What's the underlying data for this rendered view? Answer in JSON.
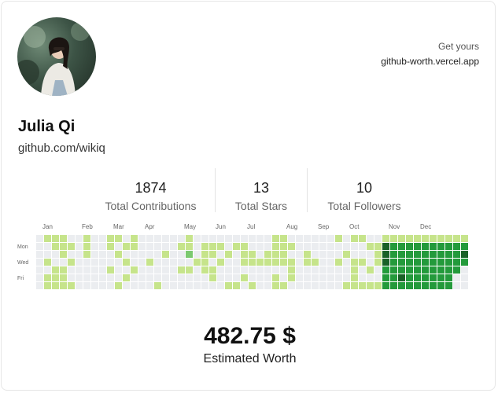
{
  "profile": {
    "name": "Julia Qi",
    "github_url": "github.com/wikiq",
    "avatar_alt": "avatar"
  },
  "promo": {
    "label": "Get yours",
    "link": "github-worth.vercel.app"
  },
  "stats": [
    {
      "value": "1874",
      "label": "Total Contributions"
    },
    {
      "value": "13",
      "label": "Total Stars"
    },
    {
      "value": "10",
      "label": "Total Followers"
    }
  ],
  "graph": {
    "months": [
      {
        "label": "Jan",
        "week": 1
      },
      {
        "label": "Feb",
        "week": 6
      },
      {
        "label": "Mar",
        "week": 10
      },
      {
        "label": "Apr",
        "week": 14
      },
      {
        "label": "May",
        "week": 19
      },
      {
        "label": "Jun",
        "week": 23
      },
      {
        "label": "Jul",
        "week": 27
      },
      {
        "label": "Aug",
        "week": 32
      },
      {
        "label": "Sep",
        "week": 36
      },
      {
        "label": "Oct",
        "week": 40
      },
      {
        "label": "Nov",
        "week": 45
      },
      {
        "label": "Dec",
        "week": 49
      }
    ],
    "day_labels": [
      "Mon",
      "Wed",
      "Fri"
    ],
    "colors": [
      "#ebedf0",
      "#c6e48b",
      "#7bc96f",
      "#239a3b",
      "#196127"
    ],
    "levels": [
      [
        0,
        1,
        1,
        1,
        0,
        0,
        1,
        0,
        0,
        1,
        1,
        0,
        1,
        0,
        0,
        0,
        0,
        0,
        0,
        1,
        0,
        0,
        0,
        0,
        0,
        0,
        0,
        0,
        0,
        0,
        1,
        1,
        0,
        0,
        0,
        0,
        0,
        0,
        1,
        0,
        1,
        1,
        0,
        0,
        1,
        1,
        1,
        1,
        1,
        1,
        1,
        1,
        1,
        1,
        1
      ],
      [
        0,
        0,
        1,
        1,
        1,
        0,
        1,
        0,
        0,
        1,
        0,
        1,
        1,
        0,
        0,
        0,
        0,
        0,
        1,
        1,
        0,
        1,
        1,
        1,
        0,
        1,
        1,
        0,
        0,
        0,
        1,
        1,
        1,
        0,
        0,
        0,
        0,
        0,
        0,
        0,
        0,
        0,
        1,
        1,
        4,
        3,
        3,
        3,
        3,
        3,
        3,
        3,
        3,
        3,
        3
      ],
      [
        0,
        0,
        0,
        1,
        0,
        0,
        1,
        0,
        0,
        0,
        1,
        0,
        0,
        0,
        0,
        0,
        1,
        0,
        0,
        2,
        0,
        1,
        1,
        0,
        1,
        0,
        1,
        1,
        0,
        1,
        1,
        1,
        0,
        0,
        1,
        0,
        0,
        0,
        0,
        1,
        0,
        0,
        0,
        1,
        4,
        3,
        3,
        3,
        3,
        3,
        3,
        3,
        3,
        3,
        4
      ],
      [
        0,
        1,
        0,
        0,
        1,
        0,
        0,
        0,
        0,
        0,
        0,
        1,
        0,
        0,
        1,
        0,
        0,
        0,
        0,
        0,
        1,
        1,
        0,
        1,
        0,
        0,
        1,
        1,
        1,
        1,
        1,
        1,
        1,
        0,
        1,
        1,
        0,
        0,
        1,
        0,
        1,
        1,
        0,
        1,
        4,
        3,
        3,
        3,
        3,
        3,
        3,
        3,
        3,
        3,
        3
      ],
      [
        0,
        0,
        1,
        1,
        0,
        0,
        0,
        0,
        0,
        1,
        0,
        0,
        1,
        0,
        0,
        0,
        0,
        0,
        1,
        1,
        0,
        1,
        1,
        0,
        0,
        0,
        0,
        0,
        0,
        0,
        0,
        0,
        1,
        0,
        0,
        0,
        0,
        0,
        0,
        0,
        1,
        0,
        1,
        0,
        3,
        3,
        3,
        3,
        3,
        3,
        3,
        3,
        3,
        3,
        0
      ],
      [
        0,
        1,
        1,
        1,
        0,
        0,
        0,
        0,
        0,
        0,
        0,
        1,
        0,
        0,
        0,
        0,
        0,
        0,
        0,
        0,
        0,
        0,
        1,
        0,
        0,
        0,
        1,
        0,
        0,
        0,
        1,
        0,
        1,
        0,
        0,
        0,
        0,
        0,
        0,
        0,
        1,
        0,
        0,
        0,
        3,
        3,
        4,
        3,
        3,
        3,
        3,
        3,
        3,
        0,
        0
      ],
      [
        0,
        1,
        1,
        1,
        1,
        0,
        0,
        0,
        0,
        0,
        1,
        0,
        0,
        0,
        0,
        1,
        0,
        0,
        0,
        0,
        0,
        0,
        0,
        0,
        1,
        1,
        0,
        1,
        0,
        0,
        1,
        1,
        0,
        0,
        0,
        0,
        0,
        0,
        0,
        1,
        1,
        1,
        1,
        1,
        3,
        3,
        3,
        3,
        3,
        3,
        3,
        3,
        3,
        0,
        0
      ]
    ]
  },
  "worth": {
    "amount": "482.75 $",
    "label": "Estimated Worth"
  }
}
